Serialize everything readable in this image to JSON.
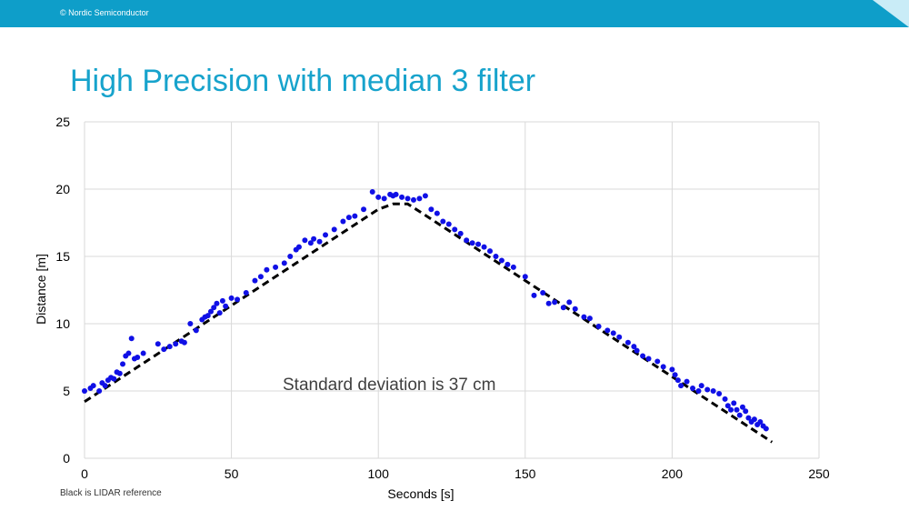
{
  "header": {
    "copyright": "© Nordic Semiconductor"
  },
  "slide": {
    "title": "High Precision with median 3 filter",
    "footnote": "Black is LIDAR reference"
  },
  "colors": {
    "bar": "#0e9ec9",
    "title": "#17a3cc",
    "points": "#1010e6",
    "reference": "#000000",
    "grid": "#d9d9d9"
  },
  "chart_data": {
    "type": "scatter",
    "xlabel": "Seconds [s]",
    "ylabel": "Distance [m]",
    "xlim": [
      0,
      250
    ],
    "ylim": [
      0,
      25
    ],
    "xticks": [
      0,
      50,
      100,
      150,
      200,
      250
    ],
    "yticks": [
      0,
      5,
      10,
      15,
      20,
      25
    ],
    "grid": true,
    "annotation": "Standard deviation is 37 cm",
    "series": [
      {
        "style": "points",
        "x": [
          0,
          2,
          3,
          5,
          6,
          7,
          8,
          9,
          10,
          11,
          12,
          13,
          14,
          15,
          16,
          17,
          18,
          20,
          25,
          27,
          29,
          31,
          33,
          34,
          36,
          38,
          40,
          41,
          42,
          43,
          44,
          45,
          46,
          47,
          48,
          50,
          52,
          55,
          58,
          60,
          62,
          65,
          68,
          70,
          72,
          73,
          75,
          77,
          78,
          80,
          82,
          85,
          88,
          90,
          92,
          95,
          98,
          100,
          102,
          104,
          105,
          106,
          108,
          110,
          112,
          114,
          116,
          118,
          120,
          122,
          124,
          126,
          128,
          130,
          132,
          134,
          136,
          138,
          140,
          142,
          144,
          146,
          150,
          153,
          156,
          158,
          160,
          163,
          165,
          167,
          170,
          172,
          175,
          178,
          180,
          182,
          185,
          187,
          188,
          190,
          192,
          195,
          197,
          200,
          201,
          202,
          203,
          205,
          207,
          209,
          210,
          212,
          214,
          216,
          218,
          219,
          220,
          221,
          222,
          223,
          224,
          225,
          226,
          227,
          228,
          229,
          230,
          231,
          232
        ],
        "y": [
          5.0,
          5.2,
          5.4,
          5.0,
          5.6,
          5.4,
          5.8,
          6.0,
          5.9,
          6.4,
          6.3,
          7.0,
          7.6,
          7.8,
          8.9,
          7.4,
          7.5,
          7.8,
          8.5,
          8.1,
          8.3,
          8.5,
          8.7,
          8.6,
          10.0,
          9.5,
          10.3,
          10.5,
          10.6,
          10.9,
          11.2,
          11.5,
          10.8,
          11.7,
          11.3,
          11.9,
          11.8,
          12.3,
          13.2,
          13.5,
          14.0,
          14.2,
          14.5,
          15.0,
          15.5,
          15.7,
          16.2,
          16.0,
          16.3,
          16.1,
          16.6,
          17.0,
          17.6,
          17.9,
          18.0,
          18.5,
          19.8,
          19.4,
          19.3,
          19.6,
          19.5,
          19.6,
          19.4,
          19.3,
          19.2,
          19.3,
          19.5,
          18.5,
          18.2,
          17.6,
          17.4,
          17.0,
          16.7,
          16.2,
          16.0,
          15.9,
          15.7,
          15.4,
          15.0,
          14.7,
          14.4,
          14.2,
          13.5,
          12.1,
          12.3,
          11.5,
          11.6,
          11.2,
          11.6,
          11.1,
          10.5,
          10.4,
          9.8,
          9.5,
          9.3,
          9.0,
          8.6,
          8.3,
          8.0,
          7.6,
          7.4,
          7.2,
          6.8,
          6.6,
          6.2,
          5.8,
          5.4,
          5.7,
          5.2,
          5.0,
          5.4,
          5.1,
          5.0,
          4.8,
          4.4,
          3.9,
          3.6,
          4.1,
          3.6,
          3.2,
          3.8,
          3.5,
          3.0,
          2.7,
          2.9,
          2.5,
          2.7,
          2.4,
          2.2
        ]
      },
      {
        "style": "dashed-line",
        "x": [
          0,
          100,
          105,
          110,
          115,
          234
        ],
        "y": [
          4.2,
          18.5,
          18.9,
          18.9,
          18.2,
          1.2
        ]
      }
    ]
  }
}
